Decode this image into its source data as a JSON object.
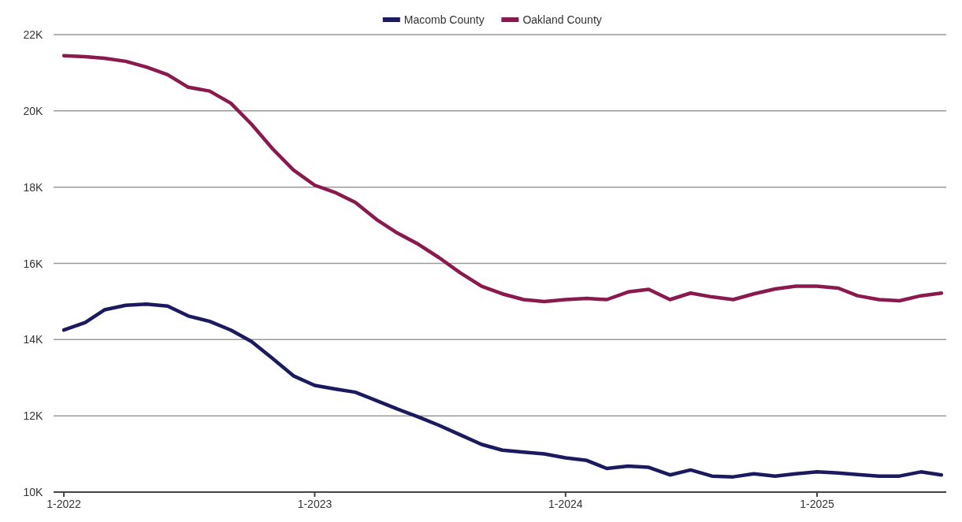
{
  "chart_data": {
    "type": "line",
    "x": [
      "2022-01",
      "2022-02",
      "2022-03",
      "2022-04",
      "2022-05",
      "2022-06",
      "2022-07",
      "2022-08",
      "2022-09",
      "2022-10",
      "2022-11",
      "2022-12",
      "2023-01",
      "2023-02",
      "2023-03",
      "2023-04",
      "2023-05",
      "2023-06",
      "2023-07",
      "2023-08",
      "2023-09",
      "2023-10",
      "2023-11",
      "2023-12",
      "2024-01",
      "2024-02",
      "2024-03",
      "2024-04",
      "2024-05",
      "2024-06",
      "2024-07",
      "2024-08",
      "2024-09",
      "2024-10",
      "2024-11",
      "2024-12",
      "2025-01",
      "2025-02",
      "2025-03",
      "2025-04",
      "2025-05",
      "2025-06",
      "2025-07"
    ],
    "series": [
      {
        "name": "Macomb County",
        "color": "#1c1a5e",
        "values": [
          14250,
          14450,
          14780,
          14900,
          14930,
          14880,
          14620,
          14480,
          14250,
          13950,
          13500,
          13050,
          12800,
          12700,
          12620,
          12400,
          12180,
          11970,
          11750,
          11500,
          11250,
          11100,
          11050,
          11000,
          10900,
          10830,
          10620,
          10680,
          10650,
          10450,
          10580,
          10420,
          10400,
          10480,
          10420,
          10480,
          10530,
          10500,
          10460,
          10420,
          10420,
          10530,
          10450
        ]
      },
      {
        "name": "Oakland County",
        "color": "#8a1a4e",
        "values": [
          21450,
          21420,
          21380,
          21300,
          21150,
          20950,
          20620,
          20520,
          20200,
          19650,
          19000,
          18450,
          18050,
          17850,
          17600,
          17150,
          16800,
          16500,
          16150,
          15750,
          15400,
          15200,
          15050,
          15000,
          15050,
          15080,
          15050,
          15250,
          15320,
          15050,
          15220,
          15120,
          15050,
          15200,
          15330,
          15400,
          15400,
          15350,
          15150,
          15050,
          15020,
          15150,
          15220
        ]
      }
    ],
    "xlim": [
      "2021-12-17",
      "2025-07-08"
    ],
    "xticks": [
      {
        "value": "2022-01",
        "label": "1-2022"
      },
      {
        "value": "2023-01",
        "label": "1-2023"
      },
      {
        "value": "2024-01",
        "label": "1-2024"
      },
      {
        "value": "2025-01",
        "label": "1-2025"
      }
    ],
    "ylim": [
      10000,
      22000
    ],
    "yticks": [
      {
        "value": 10000,
        "label": "10K"
      },
      {
        "value": 12000,
        "label": "12K"
      },
      {
        "value": 14000,
        "label": "14K"
      },
      {
        "value": 16000,
        "label": "16K"
      },
      {
        "value": 18000,
        "label": "18K"
      },
      {
        "value": 20000,
        "label": "20K"
      },
      {
        "value": 22000,
        "label": "22K"
      }
    ],
    "grid": "y",
    "legend": "top",
    "line_style": "solid"
  }
}
